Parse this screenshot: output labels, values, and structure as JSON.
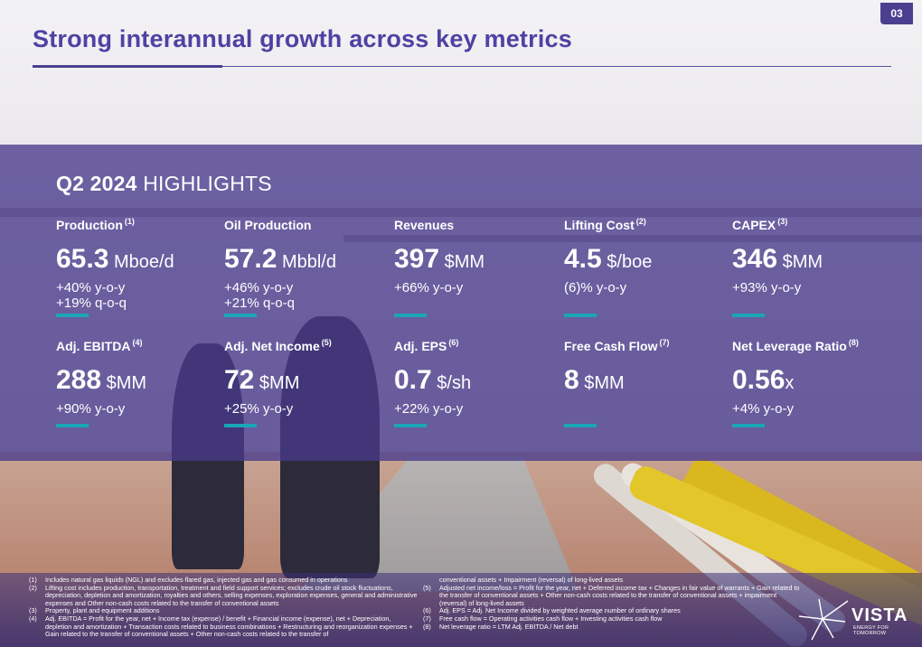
{
  "page_number": "03",
  "title": "Strong interannual growth across key metrics",
  "highlights": {
    "bold": "Q2 2024",
    "rest": " HIGHLIGHTS"
  },
  "metrics_row1": [
    {
      "label": "Production",
      "note": "(1)",
      "value": "65.3",
      "unit": " Mboe/d",
      "changes": [
        "+40% y-o-y",
        "+19% q-o-q"
      ]
    },
    {
      "label": "Oil Production",
      "note": "",
      "value": "57.2",
      "unit": " Mbbl/d",
      "changes": [
        "+46% y-o-y",
        "+21% q-o-q"
      ]
    },
    {
      "label": "Revenues",
      "note": "",
      "value": "397",
      "unit": " $MM",
      "changes": [
        "+66% y-o-y"
      ]
    },
    {
      "label": "Lifting Cost",
      "note": "(2)",
      "value": "4.5",
      "unit": " $/boe",
      "changes": [
        "(6)% y-o-y"
      ]
    },
    {
      "label": "CAPEX",
      "note": "(3)",
      "value": "346",
      "unit": " $MM",
      "changes": [
        "+93% y-o-y"
      ]
    }
  ],
  "metrics_row2": [
    {
      "label": "Adj. EBITDA",
      "note": "(4)",
      "value": "288",
      "unit": " $MM",
      "changes": [
        "+90% y-o-y"
      ]
    },
    {
      "label": "Adj. Net Income",
      "note": "(5)",
      "value": "72",
      "unit": " $MM",
      "changes": [
        "+25% y-o-y"
      ]
    },
    {
      "label": "Adj. EPS",
      "note": "(6)",
      "value": "0.7",
      "unit": " $/sh",
      "changes": [
        "+22% y-o-y"
      ]
    },
    {
      "label": "Free Cash Flow",
      "note": "(7)",
      "value": "8",
      "unit": " $MM",
      "changes": []
    },
    {
      "label": "Net Leverage Ratio",
      "note": "(8)",
      "value": "0.56",
      "unit": "x",
      "changes": [
        "+4% y-o-y"
      ]
    }
  ],
  "footnotes_left": [
    {
      "num": "(1)",
      "text": "Includes natural gas liquids (NGL) and excludes flared gas, injected gas and gas consumed in operations"
    },
    {
      "num": "(2)",
      "text": "Lifting cost includes production, transportation, treatment and field support services; excludes crude oil stock fluctuations, depreciation, depletion and amortization, royalties and others, selling expenses, exploration expenses, general and administrative expenses and Other non-cash costs related to the transfer of conventional assets"
    },
    {
      "num": "(3)",
      "text": "Property, plant and equipment additions"
    },
    {
      "num": "(4)",
      "text": "Adj. EBITDA = Profit for the year, net + Income tax (expense) / benefit + Financial income (expense), net + Depreciation, depletion and amortization + Transaction costs related to business combinations + Restructuring and reorganization expenses + Gain related to the transfer of conventional assets + Other non-cash costs related to the transfer of"
    }
  ],
  "footnotes_right": [
    {
      "num": "",
      "text": "conventional assets + Impairment (reversal) of long-lived assets"
    },
    {
      "num": "(5)",
      "text": "Adjusted net income/loss = Profit for the year, net + Deferred income tax + Changes in fair value of warrants + Gain related to the transfer of conventional assets + Other non-cash costs related to the transfer of conventional assets + impairment (reversal) of long-lived assets"
    },
    {
      "num": "(6)",
      "text": "Adj. EPS = Adj. Net Income divided by weighted average number of ordinary shares"
    },
    {
      "num": "(7)",
      "text": "Free cash flow = Operating activities cash flow + Investing activities cash flow"
    },
    {
      "num": "(8)",
      "text": "Net leverage ratio = LTM Adj. EBITDA / Net debt"
    }
  ],
  "logo": {
    "name": "VISTA",
    "tagline": "ENERGY FOR TOMORROW"
  },
  "colors": {
    "accent": "#4e42a3",
    "bar": "#1ba6b7",
    "panel": "#483a8c"
  }
}
